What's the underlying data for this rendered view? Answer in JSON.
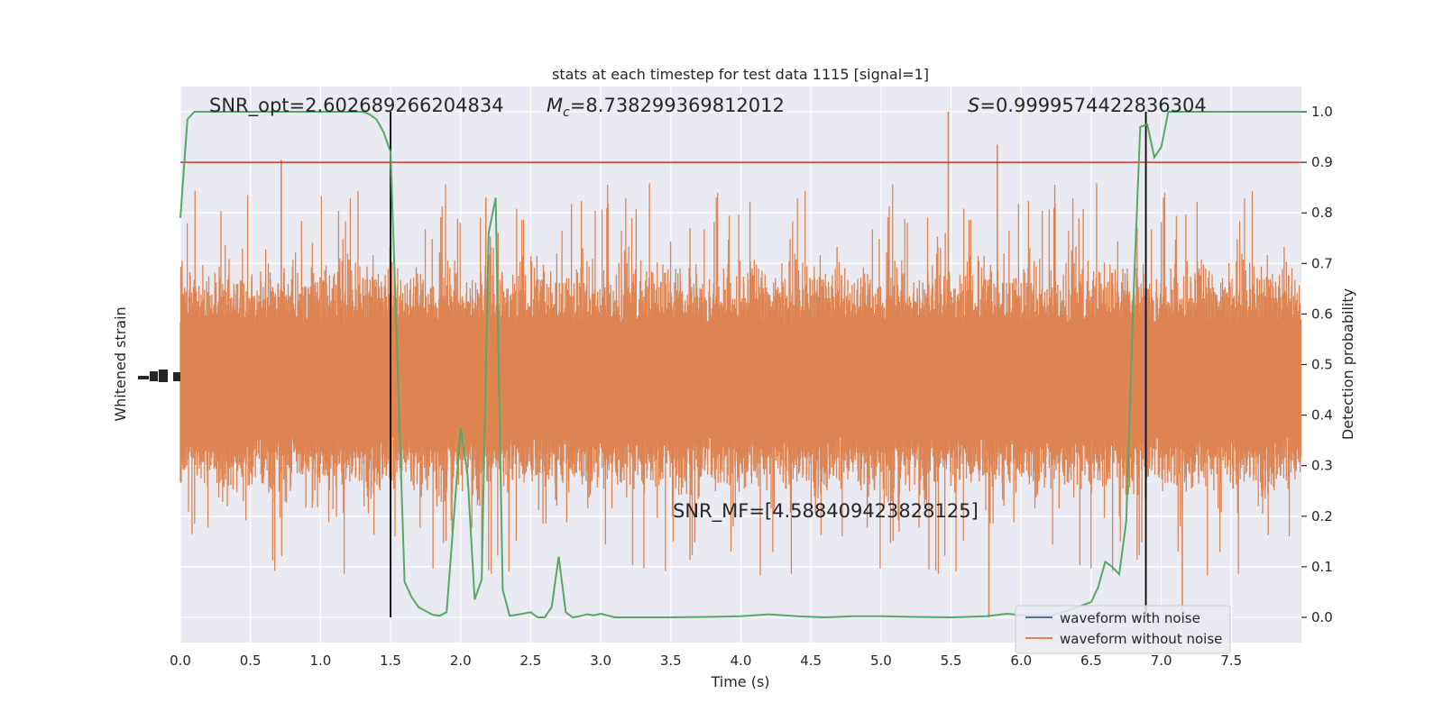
{
  "chart_data": {
    "type": "line",
    "title": "stats at each timestep for test data 1115 [signal=1]",
    "xlabel": "Time (s)",
    "ylabel_left": "Whitened strain",
    "ylabel_right": "Detection probability",
    "xlim": [
      0,
      8
    ],
    "ylim_right": [
      -0.05,
      1.05
    ],
    "x_ticks": [
      "0.0",
      "0.5",
      "1.0",
      "1.5",
      "2.0",
      "2.5",
      "3.0",
      "3.5",
      "4.0",
      "4.5",
      "5.0",
      "5.5",
      "6.0",
      "6.5",
      "7.0",
      "7.5"
    ],
    "y_ticks_right": [
      "0.0",
      "0.1",
      "0.2",
      "0.3",
      "0.4",
      "0.5",
      "0.6",
      "0.7",
      "0.8",
      "0.9",
      "1.0"
    ],
    "grid": true,
    "annotations": {
      "snr_opt": "SNR_opt=2.602689266204834",
      "mc_symbol": "M",
      "mc_sub": "c",
      "mc_value": "=8.738299369812012",
      "s_symbol": "S",
      "s_value": "=0.9999574422836304",
      "snr_mf": "SNR_MF=[4.588409423828125]"
    },
    "threshold": {
      "y": 0.9,
      "color": "#c0392b"
    },
    "vertical_markers": [
      1.5,
      6.89
    ],
    "legend": {
      "placement": "lower-right",
      "entries": [
        {
          "label": "waveform with noise",
          "color": "#4c72b0"
        },
        {
          "label": "waveform without noise",
          "color": "#dd8452"
        }
      ]
    },
    "strain_series": {
      "color": "#dd8452",
      "center_prob": 0.47,
      "core_half_width": 0.11,
      "typical_peak": 0.22,
      "spike_examples": [
        {
          "x": 0.72,
          "y": 0.905
        },
        {
          "x": 5.48,
          "y": 1.0
        },
        {
          "x": 5.83,
          "y": 0.935
        },
        {
          "x": 2.18,
          "y": 0.83
        },
        {
          "x": 5.77,
          "y": 0.0
        },
        {
          "x": 7.15,
          "y": -0.01
        }
      ]
    },
    "detection_series": {
      "color": "#55a868",
      "x": [
        0.0,
        0.05,
        0.1,
        0.15,
        0.2,
        0.3,
        0.5,
        0.75,
        1.0,
        1.1,
        1.2,
        1.25,
        1.3,
        1.35,
        1.4,
        1.45,
        1.5,
        1.55,
        1.6,
        1.65,
        1.7,
        1.8,
        1.85,
        1.9,
        2.0,
        2.05,
        2.1,
        2.15,
        2.2,
        2.25,
        2.3,
        2.35,
        2.4,
        2.5,
        2.55,
        2.6,
        2.65,
        2.7,
        2.75,
        2.8,
        2.85,
        2.9,
        2.95,
        3.0,
        3.1,
        3.2,
        3.5,
        3.8,
        4.0,
        4.2,
        4.4,
        4.6,
        4.8,
        5.0,
        5.2,
        5.5,
        5.75,
        5.9,
        6.05,
        6.2,
        6.3,
        6.4,
        6.5,
        6.55,
        6.6,
        6.65,
        6.7,
        6.75,
        6.8,
        6.85,
        6.9,
        6.95,
        7.0,
        7.05,
        7.1,
        7.15,
        7.2,
        7.3,
        7.5,
        8.0
      ],
      "y": [
        0.79,
        0.985,
        1.0,
        1.0,
        1.0,
        1.0,
        1.0,
        1.0,
        1.0,
        1.0,
        1.0,
        1.0,
        1.0,
        0.995,
        0.985,
        0.96,
        0.92,
        0.5,
        0.07,
        0.04,
        0.02,
        0.005,
        0.003,
        0.01,
        0.375,
        0.28,
        0.035,
        0.075,
        0.76,
        0.83,
        0.055,
        0.003,
        0.005,
        0.01,
        0.0,
        0.0,
        0.02,
        0.12,
        0.01,
        0.0,
        0.002,
        0.006,
        0.004,
        0.007,
        0.0,
        0.0,
        0.0,
        0.001,
        0.002,
        0.006,
        0.002,
        0.0,
        0.002,
        0.002,
        0.001,
        0.0,
        0.002,
        0.007,
        0.003,
        0.003,
        0.01,
        0.02,
        0.03,
        0.06,
        0.11,
        0.1,
        0.085,
        0.19,
        0.62,
        0.97,
        0.975,
        0.91,
        0.93,
        1.0,
        1.0,
        1.0,
        1.0,
        1.0,
        1.0,
        1.0
      ]
    }
  }
}
